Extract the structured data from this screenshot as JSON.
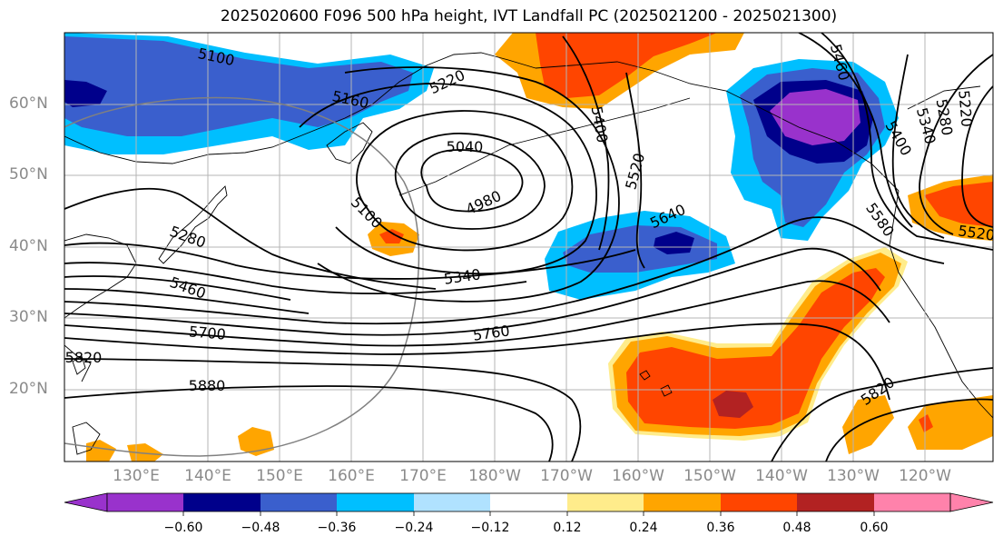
{
  "title": "2025020600 F096 500 hPa height, IVT Landfall PC (2025021200 - 2025021300)",
  "map": {
    "lat_ticks": [
      "60°N",
      "50°N",
      "40°N",
      "30°N",
      "20°N"
    ],
    "lon_ticks": [
      "130°E",
      "140°E",
      "150°E",
      "160°E",
      "170°E",
      "180°W",
      "170°W",
      "160°W",
      "150°W",
      "140°W",
      "130°W",
      "120°W"
    ],
    "contour_labels": [
      "5100",
      "5220",
      "5160",
      "5400",
      "5460",
      "5340",
      "5280",
      "5220",
      "5040",
      "4980",
      "5520",
      "5100",
      "5640",
      "5400",
      "5580",
      "5280",
      "5460",
      "5340",
      "5700",
      "5760",
      "5820",
      "5880",
      "5820",
      "5520"
    ],
    "colors": {
      "land_outline": "#000000",
      "grid": "#b4b4b4",
      "contour": "#000000",
      "circle": "#808080"
    }
  },
  "colorbar": {
    "tick_labels": [
      "−0.60",
      "−0.48",
      "−0.36",
      "−0.24",
      "−0.12",
      "0.12",
      "0.24",
      "0.36",
      "0.48",
      "0.60"
    ],
    "colors": [
      "#9932CC",
      "#00008B",
      "#3A5FCD",
      "#00BFFF",
      "#B0E2FF",
      "#FFFFFF",
      "#FFEC8B",
      "#FFA500",
      "#FF4500",
      "#B22222",
      "#FF82AB"
    ]
  }
}
